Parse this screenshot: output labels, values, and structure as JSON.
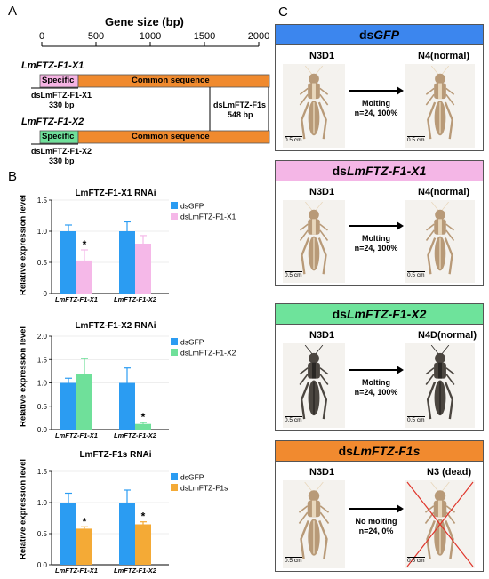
{
  "panelA": {
    "letter": "A",
    "axis_title": "Gene size (bp)",
    "ticks": [
      0,
      500,
      1000,
      1500,
      2000
    ],
    "x1": {
      "name": "LmFTZ-F1-X1",
      "specific_label": "Specific",
      "common_label": "Common sequence",
      "ds_name": "dsLmFTZ-F1-X1",
      "ds_size": "330 bp",
      "colors": {
        "specific": "#f6b3e3",
        "common": "#f08a2e"
      }
    },
    "x2": {
      "name": "LmFTZ-F1-X2",
      "specific_label": "Specific",
      "common_label": "Common sequence",
      "ds_name": "dsLmFTZ-F1-X2",
      "ds_size": "330 bp",
      "colors": {
        "specific": "#6fe09a",
        "common": "#f08a2e"
      }
    },
    "f1s": {
      "name": "dsLmFTZ-F1s",
      "size": "548 bp"
    }
  },
  "panelB": {
    "letter": "B",
    "ylabel": "Relative expression level",
    "colors": {
      "gfp": "#2b9cf2",
      "x1": "#f5b8e8",
      "x2": "#6fe09a",
      "f1s": "#f4aa36"
    },
    "charts": [
      {
        "title": "LmFTZ-F1-X1 RNAi",
        "legend": [
          "dsGFP",
          "dsLmFTZ-F1-X1"
        ],
        "categories": [
          "LmFTZ-F1-X1",
          "LmFTZ-F1-X2"
        ],
        "yticks": [
          "0",
          "0.5",
          "1.0",
          "1.5"
        ]
      },
      {
        "title": "LmFTZ-F1-X2 RNAi",
        "legend": [
          "dsGFP",
          "dsLmFTZ-F1-X2"
        ],
        "categories": [
          "LmFTZ-F1-X1",
          "LmFTZ-F1-X2"
        ],
        "yticks": [
          "0.0",
          "0.5",
          "1.0",
          "1.5",
          "2.0"
        ]
      },
      {
        "title": "LmFTZ-F1s RNAi",
        "legend": [
          "dsGFP",
          "dsLmFTZ-F1s"
        ],
        "categories": [
          "LmFTZ-F1-X1",
          "LmFTZ-F1-X2"
        ],
        "yticks": [
          "0.0",
          "0.5",
          "1.0",
          "1.5"
        ]
      }
    ]
  },
  "chart_data": [
    {
      "type": "bar",
      "title": "LmFTZ-F1-X1 RNAi",
      "ylabel": "Relative expression level",
      "ylim": [
        0,
        1.5
      ],
      "categories": [
        "LmFTZ-F1-X1",
        "LmFTZ-F1-X2"
      ],
      "series": [
        {
          "name": "dsGFP",
          "values": [
            1.0,
            1.0
          ],
          "errors": [
            0.1,
            0.15
          ]
        },
        {
          "name": "dsLmFTZ-F1-X1",
          "values": [
            0.53,
            0.8
          ],
          "errors": [
            0.17,
            0.13
          ]
        }
      ],
      "significance": [
        "*",
        ""
      ]
    },
    {
      "type": "bar",
      "title": "LmFTZ-F1-X2 RNAi",
      "ylabel": "Relative expression level",
      "ylim": [
        0,
        2.0
      ],
      "categories": [
        "LmFTZ-F1-X1",
        "LmFTZ-F1-X2"
      ],
      "series": [
        {
          "name": "dsGFP",
          "values": [
            1.0,
            1.0
          ],
          "errors": [
            0.1,
            0.32
          ]
        },
        {
          "name": "dsLmFTZ-F1-X2",
          "values": [
            1.2,
            0.12
          ],
          "errors": [
            0.32,
            0.03
          ]
        }
      ],
      "significance": [
        "",
        "*"
      ]
    },
    {
      "type": "bar",
      "title": "LmFTZ-F1s RNAi",
      "ylabel": "Relative expression level",
      "ylim": [
        0,
        1.5
      ],
      "categories": [
        "LmFTZ-F1-X1",
        "LmFTZ-F1-X2"
      ],
      "series": [
        {
          "name": "dsGFP",
          "values": [
            1.0,
            1.0
          ],
          "errors": [
            0.15,
            0.2
          ]
        },
        {
          "name": "dsLmFTZ-F1s",
          "values": [
            0.58,
            0.65
          ],
          "errors": [
            0.03,
            0.04
          ]
        }
      ],
      "significance": [
        "*",
        "*"
      ]
    }
  ],
  "panelC": {
    "letter": "C",
    "scale": "0.5 cm",
    "cards": [
      {
        "title_pre": "ds",
        "title_it": "GFP",
        "color": "#3c86ee",
        "left": "N3D1",
        "right": "N4(normal)",
        "action": "Molting",
        "stat": "n=24, 100%",
        "dead": false
      },
      {
        "title_pre": "ds",
        "title_it": "LmFTZ-F1-X1",
        "color": "#f4b6e6",
        "left": "N3D1",
        "right": "N4(normal)",
        "action": "Molting",
        "stat": "n=24, 100%",
        "dead": false
      },
      {
        "title_pre": "ds",
        "title_it": "LmFTZ-F1-X2",
        "color": "#6ee39b",
        "left": "N3D1",
        "right": "N4D(normal)",
        "action": "Molting",
        "stat": "n=24, 100%",
        "dead": false
      },
      {
        "title_pre": "ds",
        "title_it": "LmFTZ-F1s",
        "color": "#f18a2f",
        "left": "N3D1",
        "right": "N3 (dead)",
        "action": "No molting",
        "stat": "n=24, 0%",
        "dead": true
      }
    ]
  }
}
